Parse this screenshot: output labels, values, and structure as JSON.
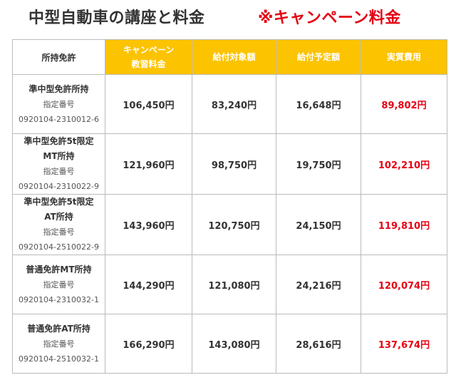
{
  "title": {
    "main": "中型自動車の講座と料金",
    "campaign": "※キャンペーン料金"
  },
  "headers": {
    "license": "所持免許",
    "campaign_fee_line1": "キャンペーン",
    "campaign_fee_line2": "教習料金",
    "subsidy_base": "給付対象額",
    "subsidy_planned": "給付予定額",
    "actual_cost": "実質費用"
  },
  "rows": [
    {
      "name_lines": [
        "準中型免許所持"
      ],
      "designation_label": "指定番号",
      "designation_number": "0920104-2310012-6",
      "campaign_fee": "106,450円",
      "subsidy_base": "83,240円",
      "subsidy_planned": "16,648円",
      "actual_cost": "89,802円"
    },
    {
      "name_lines": [
        "準中型免許5t限定",
        "MT所持"
      ],
      "designation_label": "指定番号",
      "designation_number": "0920104-2310022-9",
      "campaign_fee": "121,960円",
      "subsidy_base": "98,750円",
      "subsidy_planned": "19,750円",
      "actual_cost": "102,210円"
    },
    {
      "name_lines": [
        "準中型免許5t限定",
        "AT所持"
      ],
      "designation_label": "指定番号",
      "designation_number": "0920104-2510022-9",
      "campaign_fee": "143,960円",
      "subsidy_base": "120,750円",
      "subsidy_planned": "24,150円",
      "actual_cost": "119,810円"
    },
    {
      "name_lines": [
        "普通免許MT所持"
      ],
      "designation_label": "指定番号",
      "designation_number": "0920104-2310032-1",
      "campaign_fee": "144,290円",
      "subsidy_base": "121,080円",
      "subsidy_planned": "24,216円",
      "actual_cost": "120,074円"
    },
    {
      "name_lines": [
        "普通免許AT所持"
      ],
      "designation_label": "指定番号",
      "designation_number": "0920104-2510032-1",
      "campaign_fee": "166,290円",
      "subsidy_base": "143,080円",
      "subsidy_planned": "28,616円",
      "actual_cost": "137,674円"
    }
  ],
  "colors": {
    "campaign_header_bg": "#fcc300",
    "accent_red": "#e60012",
    "text": "#333333",
    "border": "#bbbbbb"
  }
}
